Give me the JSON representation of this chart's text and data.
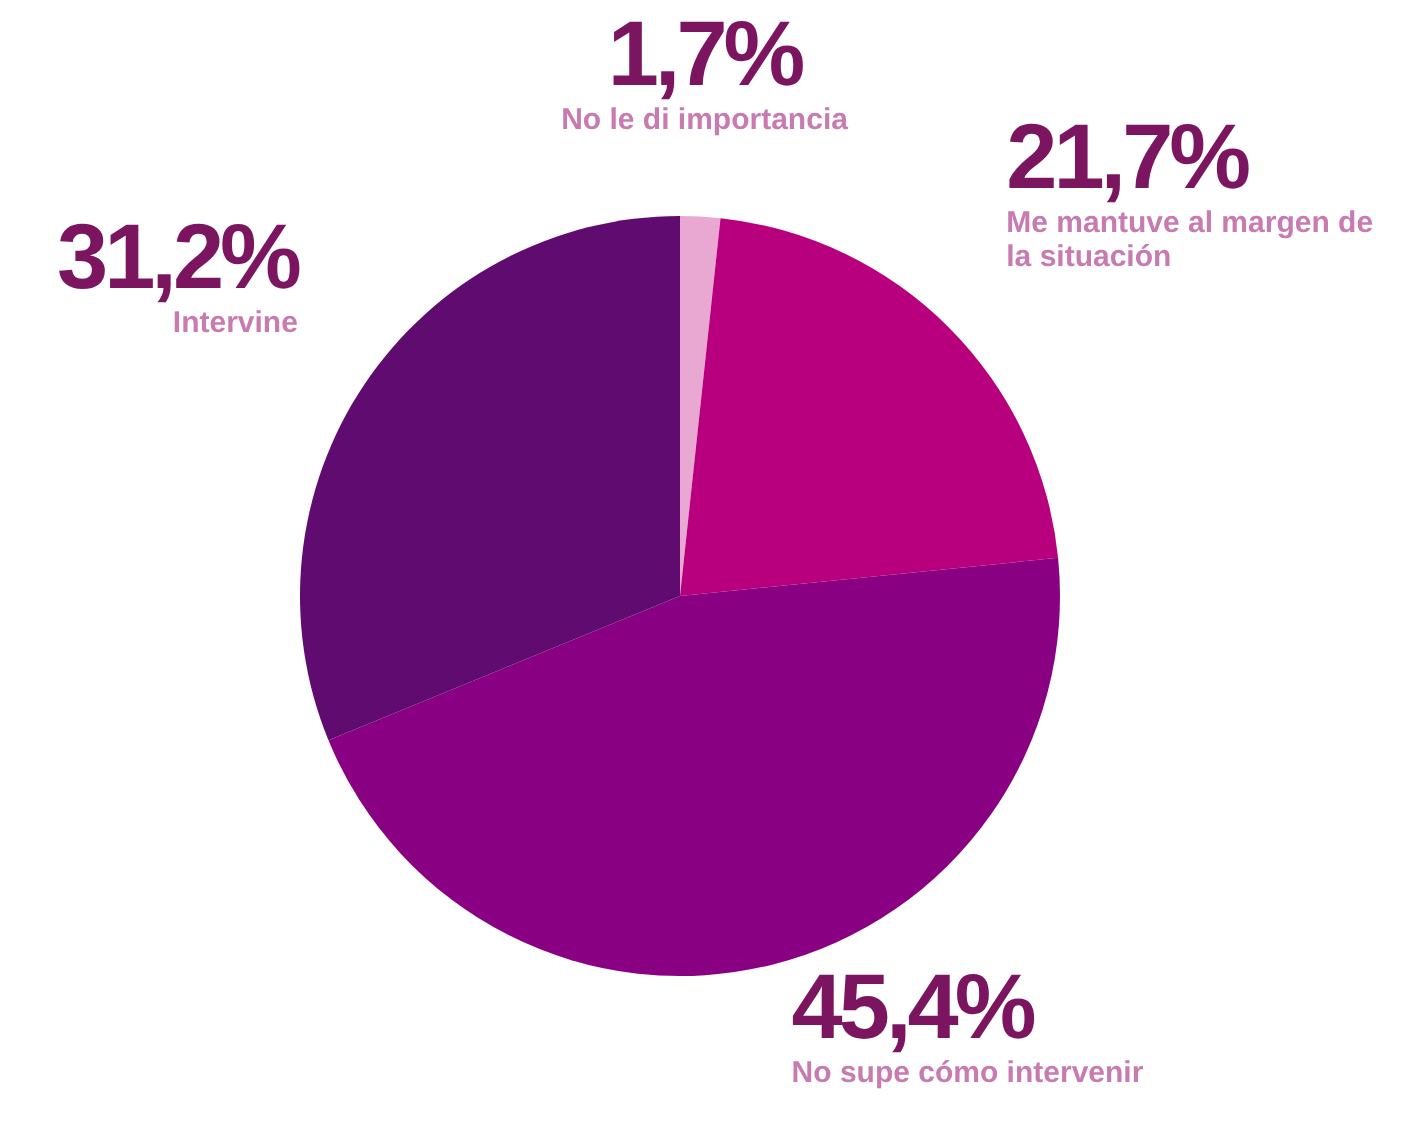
{
  "chart_data": {
    "type": "pie",
    "categories": [
      "No le di importancia",
      "Me mantuve al margen de la situación",
      "No supe cómo intervenir",
      "Intervine"
    ],
    "values": [
      1.7,
      21.7,
      45.4,
      31.2
    ],
    "colors": [
      "#e9a8d2",
      "#b8007f",
      "#8a0083",
      "#5f0b70"
    ],
    "value_labels": [
      "1,7%",
      "21,7%",
      "45,4%",
      "31,2%"
    ]
  }
}
